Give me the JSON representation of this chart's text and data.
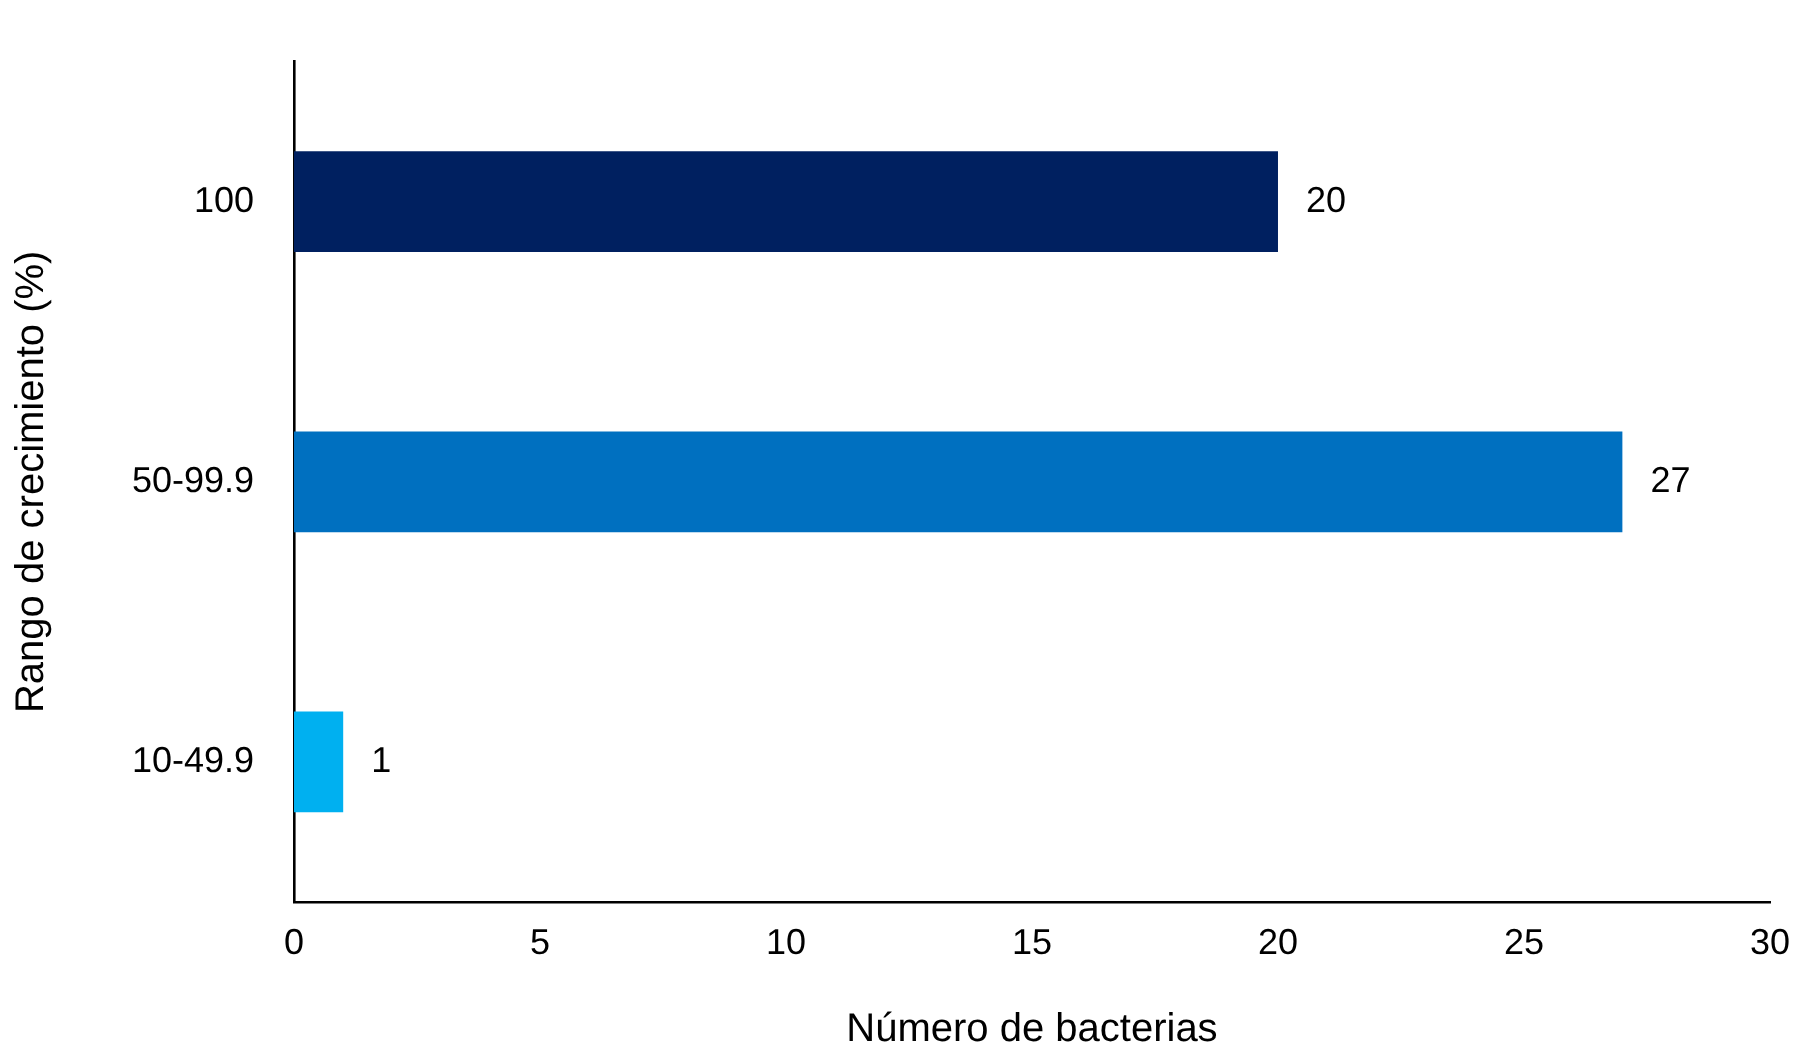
{
  "chart_data": {
    "type": "bar",
    "orientation": "horizontal",
    "xlabel": "Número de bacterias",
    "ylabel": "Rango de crecimiento (%)",
    "categories": [
      "100",
      "50-99.9",
      "10-49.9"
    ],
    "values": [
      20,
      27,
      1
    ],
    "colors": [
      "#002060",
      "#0070c0",
      "#00b0f0"
    ],
    "xlim": [
      0,
      30
    ],
    "xticks": [
      0,
      5,
      10,
      15,
      20,
      25,
      30
    ],
    "data_labels": true
  }
}
